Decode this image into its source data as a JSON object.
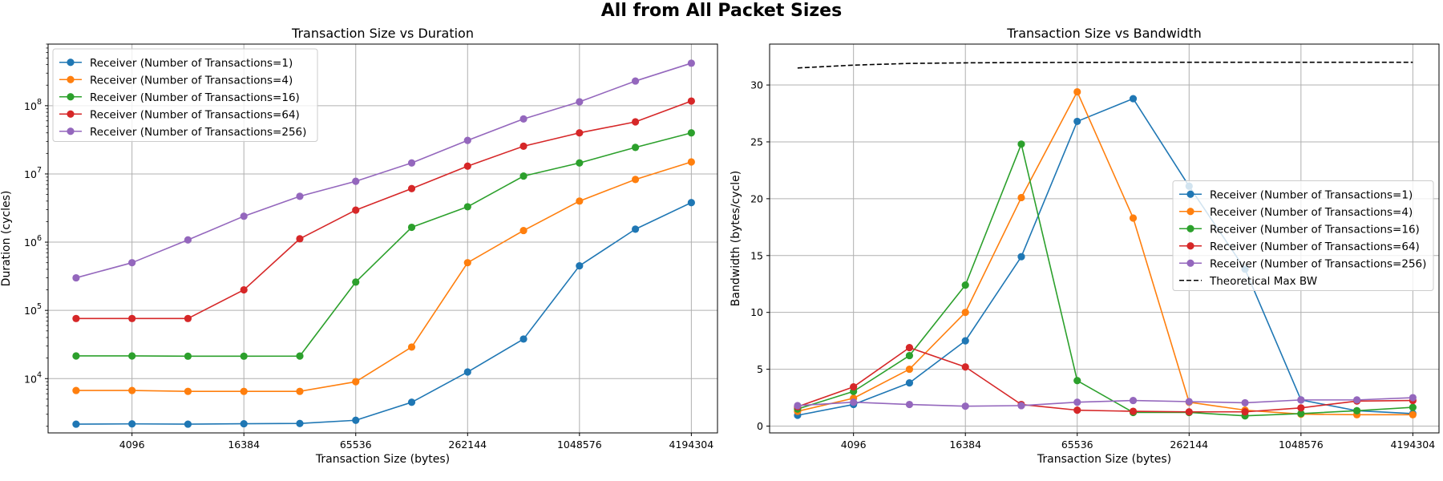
{
  "figure": {
    "title": "All from All Packet Sizes"
  },
  "chart_data": [
    {
      "type": "line",
      "title": "Transaction Size vs Duration",
      "xlabel": "Transaction Size (bytes)",
      "ylabel": "Duration (cycles)",
      "xscale": "log2",
      "yscale": "log",
      "xlim": [
        1448,
        5800000
      ],
      "ylim": [
        1600,
        800000000
      ],
      "grid": true,
      "legend_position": "upper-left",
      "x": [
        2048,
        4096,
        8192,
        16384,
        32768,
        65536,
        131072,
        262144,
        524288,
        1048576,
        2097152,
        4194304
      ],
      "xticks": [
        {
          "value": 4096,
          "label": "4096"
        },
        {
          "value": 16384,
          "label": "16384"
        },
        {
          "value": 65536,
          "label": "65536"
        },
        {
          "value": 262144,
          "label": "262144"
        },
        {
          "value": 1048576,
          "label": "1048576"
        },
        {
          "value": 4194304,
          "label": "4194304"
        }
      ],
      "yticks": [
        {
          "value": 10000,
          "base": "10",
          "exp": "4"
        },
        {
          "value": 100000,
          "base": "10",
          "exp": "5"
        },
        {
          "value": 1000000,
          "base": "10",
          "exp": "6"
        },
        {
          "value": 10000000,
          "base": "10",
          "exp": "7"
        },
        {
          "value": 100000000,
          "base": "10",
          "exp": "8"
        }
      ],
      "series": [
        {
          "name": "Receiver (Number of Transactions=1)",
          "color": "#1f77b4",
          "values": [
            2150,
            2170,
            2150,
            2180,
            2200,
            2450,
            4500,
            12500,
            38000,
            450000,
            1550000,
            3800000
          ]
        },
        {
          "name": "Receiver (Number of Transactions=4)",
          "color": "#ff7f0e",
          "values": [
            6700,
            6700,
            6500,
            6500,
            6500,
            9000,
            29000,
            500000,
            1480000,
            4000000,
            8300000,
            15000000
          ]
        },
        {
          "name": "Receiver (Number of Transactions=16)",
          "color": "#2ca02c",
          "values": [
            21500,
            21500,
            21300,
            21300,
            21400,
            260000,
            1650000,
            3300000,
            9300000,
            14500000,
            24500000,
            40000000
          ]
        },
        {
          "name": "Receiver (Number of Transactions=64)",
          "color": "#d62728",
          "values": [
            76000,
            76000,
            76000,
            200000,
            1120000,
            2950000,
            6100000,
            13000000,
            25500000,
            40000000,
            58000000,
            117000000
          ]
        },
        {
          "name": "Receiver (Number of Transactions=256)",
          "color": "#9467bd",
          "values": [
            300000,
            500000,
            1080000,
            2400000,
            4700000,
            7800000,
            14500000,
            31000000,
            64000000,
            114000000,
            230000000,
            420000000
          ]
        }
      ]
    },
    {
      "type": "line",
      "title": "Transaction Size vs Bandwidth",
      "xlabel": "Transaction Size (bytes)",
      "ylabel": "Bandwidth (bytes/cycle)",
      "xscale": "log2",
      "yscale": "linear",
      "xlim": [
        1448,
        5800000
      ],
      "ylim": [
        -0.6,
        33.6
      ],
      "grid": true,
      "legend_position": "center-right",
      "x": [
        2048,
        4096,
        8192,
        16384,
        32768,
        65536,
        131072,
        262144,
        524288,
        1048576,
        2097152,
        4194304
      ],
      "xticks": [
        {
          "value": 4096,
          "label": "4096"
        },
        {
          "value": 16384,
          "label": "16384"
        },
        {
          "value": 65536,
          "label": "65536"
        },
        {
          "value": 262144,
          "label": "262144"
        },
        {
          "value": 1048576,
          "label": "1048576"
        },
        {
          "value": 4194304,
          "label": "4194304"
        }
      ],
      "yticks": [
        {
          "value": 0,
          "label": "0"
        },
        {
          "value": 5,
          "label": "5"
        },
        {
          "value": 10,
          "label": "10"
        },
        {
          "value": 15,
          "label": "15"
        },
        {
          "value": 20,
          "label": "20"
        },
        {
          "value": 25,
          "label": "25"
        },
        {
          "value": 30,
          "label": "30"
        }
      ],
      "series": [
        {
          "name": "Receiver (Number of Transactions=1)",
          "color": "#1f77b4",
          "style": "solid-marker",
          "values": [
            0.95,
            1.9,
            3.8,
            7.5,
            14.9,
            26.8,
            28.8,
            21.1,
            13.8,
            2.3,
            1.35,
            1.1
          ]
        },
        {
          "name": "Receiver (Number of Transactions=4)",
          "color": "#ff7f0e",
          "style": "solid-marker",
          "values": [
            1.3,
            2.45,
            5.0,
            10.0,
            20.1,
            29.4,
            18.3,
            2.1,
            1.4,
            1.05,
            1.0,
            1.0
          ]
        },
        {
          "name": "Receiver (Number of Transactions=16)",
          "color": "#2ca02c",
          "style": "solid-marker",
          "values": [
            1.5,
            3.05,
            6.2,
            12.4,
            24.8,
            4.0,
            1.2,
            1.2,
            0.9,
            1.1,
            1.35,
            1.65
          ]
        },
        {
          "name": "Receiver (Number of Transactions=64)",
          "color": "#d62728",
          "style": "solid-marker",
          "values": [
            1.7,
            3.45,
            6.9,
            5.2,
            1.9,
            1.4,
            1.3,
            1.25,
            1.25,
            1.6,
            2.2,
            2.25
          ]
        },
        {
          "name": "Receiver (Number of Transactions=256)",
          "color": "#9467bd",
          "style": "solid-marker",
          "values": [
            1.8,
            2.1,
            1.9,
            1.75,
            1.8,
            2.1,
            2.25,
            2.15,
            2.05,
            2.3,
            2.3,
            2.5
          ]
        },
        {
          "name": "Theoretical Max BW",
          "color": "#000000",
          "style": "dashed",
          "values": [
            31.5,
            31.75,
            31.9,
            31.95,
            31.98,
            31.99,
            32.0,
            32.0,
            32.0,
            32.0,
            32.0,
            32.0
          ]
        }
      ]
    }
  ]
}
